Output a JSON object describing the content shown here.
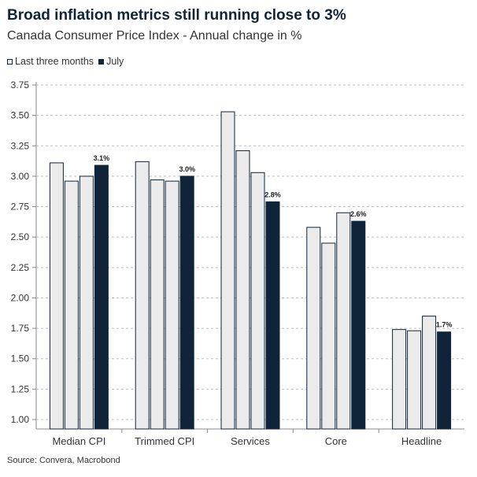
{
  "title": "Broad inflation metrics still running close to 3%",
  "subtitle": "Canada Consumer Price Index - Annual change in %",
  "source": "Source: Convera, Macrobond",
  "legend": [
    {
      "label": "Last three months",
      "color": "#ebebeb"
    },
    {
      "label": "July",
      "color": "#0f2438"
    }
  ],
  "chart_data": {
    "type": "bar",
    "categories": [
      "Median CPI",
      "Trimmed CPI",
      "Services",
      "Core",
      "Headline"
    ],
    "series": [
      {
        "name": "Last three months",
        "values": [
          [
            3.11,
            2.96,
            3.0
          ],
          [
            3.12,
            2.97,
            2.96
          ],
          [
            3.53,
            3.21,
            3.03
          ],
          [
            2.58,
            2.45,
            2.7
          ],
          [
            1.74,
            1.73,
            1.85
          ]
        ]
      },
      {
        "name": "July",
        "values": [
          3.09,
          3.0,
          2.79,
          2.63,
          1.72
        ]
      }
    ],
    "data_labels": [
      "3.1%",
      "3.0%",
      "2.8%",
      "2.6%",
      "1.7%"
    ],
    "yticks": [
      "1.00",
      "1.25",
      "1.50",
      "1.75",
      "2.00",
      "2.25",
      "2.50",
      "2.75",
      "3.00",
      "3.25",
      "3.50",
      "3.75"
    ],
    "ylim": [
      0.9,
      3.85
    ],
    "grid": true,
    "legend_position": "top-left",
    "colors": {
      "last_three_months": "#ebebeb",
      "july": "#0f2438",
      "outline": "#0f2438",
      "grid": "#bfbfbf"
    }
  }
}
